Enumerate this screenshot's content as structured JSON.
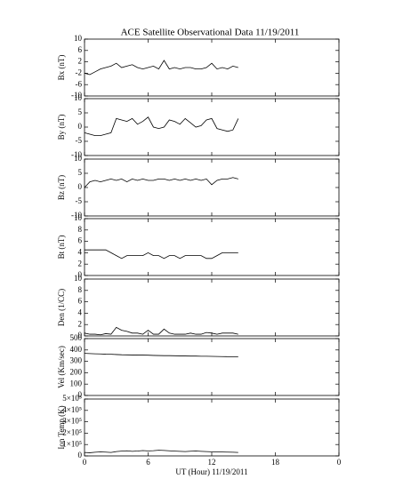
{
  "title": "ACE Satellite Observational Data   11/19/2011",
  "chart_data": [
    {
      "type": "line",
      "y_label": "Bx (nT)",
      "color": "#000000",
      "ylim": [
        -10,
        10
      ],
      "yticks": [
        -10,
        -6,
        -2,
        2,
        6,
        10
      ],
      "x": [
        0,
        0.5,
        1,
        1.5,
        2,
        2.5,
        3,
        3.5,
        4,
        4.5,
        5,
        5.5,
        6,
        6.5,
        7,
        7.5,
        8,
        8.5,
        9,
        9.5,
        10,
        10.5,
        11,
        11.5,
        12,
        12.5,
        13,
        13.5,
        14,
        14.5
      ],
      "values": [
        -2,
        -2.5,
        -1.5,
        -0.5,
        0,
        0.5,
        1.5,
        0,
        0.5,
        1,
        0,
        -0.5,
        0,
        0.5,
        -0.5,
        2.5,
        -0.5,
        0,
        -0.5,
        0,
        0,
        -0.5,
        -0.5,
        0,
        1.5,
        -0.5,
        0,
        -0.5,
        0.5,
        0
      ]
    },
    {
      "type": "line",
      "y_label": "By (nT)",
      "color": "#000000",
      "ylim": [
        -10,
        10
      ],
      "yticks": [
        -10,
        -5,
        0,
        5,
        10
      ],
      "x": [
        0,
        0.5,
        1,
        1.5,
        2,
        2.5,
        3,
        3.5,
        4,
        4.5,
        5,
        5.5,
        6,
        6.5,
        7,
        7.5,
        8,
        8.5,
        9,
        9.5,
        10,
        10.5,
        11,
        11.5,
        12,
        12.5,
        13,
        13.5,
        14,
        14.5
      ],
      "values": [
        -2,
        -2.5,
        -3,
        -3,
        -2.5,
        -2,
        3,
        2.5,
        2,
        3,
        1,
        2,
        3.5,
        0,
        -0.5,
        0,
        2.5,
        2,
        1,
        3,
        1.5,
        0,
        0.5,
        2.5,
        3,
        -0.5,
        -1,
        -1.5,
        -1,
        3
      ]
    },
    {
      "type": "line",
      "y_label": "Bz (nT)",
      "color": "#000000",
      "ylim": [
        -10,
        10
      ],
      "yticks": [
        -10,
        -5,
        0,
        5,
        10
      ],
      "x": [
        0,
        0.5,
        1,
        1.5,
        2,
        2.5,
        3,
        3.5,
        4,
        4.5,
        5,
        5.5,
        6,
        6.5,
        7,
        7.5,
        8,
        8.5,
        9,
        9.5,
        10,
        10.5,
        11,
        11.5,
        12,
        12.5,
        13,
        13.5,
        14,
        14.5
      ],
      "values": [
        0,
        2,
        2.5,
        2,
        2.5,
        3,
        2.5,
        3,
        2,
        3,
        2.5,
        3,
        2.5,
        2.5,
        3,
        3,
        2.5,
        3,
        2.5,
        3,
        2.5,
        3,
        2.5,
        3,
        1,
        2.5,
        3,
        3,
        3.5,
        3
      ]
    },
    {
      "type": "line",
      "y_label": "Bt (nT)",
      "color": "#000000",
      "ylim": [
        0,
        10
      ],
      "yticks": [
        0,
        2,
        4,
        6,
        8,
        10
      ],
      "x": [
        0,
        0.5,
        1,
        1.5,
        2,
        2.5,
        3,
        3.5,
        4,
        4.5,
        5,
        5.5,
        6,
        6.5,
        7,
        7.5,
        8,
        8.5,
        9,
        9.5,
        10,
        10.5,
        11,
        11.5,
        12,
        12.5,
        13,
        13.5,
        14,
        14.5
      ],
      "values": [
        4.5,
        4.5,
        4.5,
        4.5,
        4.5,
        4,
        3.5,
        3,
        3.5,
        3.5,
        3.5,
        3.5,
        4,
        3.5,
        3.5,
        3,
        3.5,
        3.5,
        3,
        3.5,
        3.5,
        3.5,
        3.5,
        3,
        3,
        3.5,
        4,
        4,
        4,
        4
      ]
    },
    {
      "type": "line",
      "y_label": "Den (1/CC)",
      "color": "#000000",
      "ylim": [
        0,
        10
      ],
      "yticks": [
        0,
        2,
        4,
        6,
        8,
        10
      ],
      "x": [
        0,
        0.5,
        1,
        1.5,
        2,
        2.5,
        3,
        3.5,
        4,
        4.5,
        5,
        5.5,
        6,
        6.5,
        7,
        7.5,
        8,
        8.5,
        9,
        9.5,
        10,
        10.5,
        11,
        11.5,
        12,
        12.5,
        13,
        13.5,
        14,
        14.5
      ],
      "values": [
        0.5,
        0.3,
        0.3,
        0.2,
        0.4,
        0.3,
        1.5,
        1,
        0.8,
        0.5,
        0.5,
        0.3,
        1,
        0.3,
        0.3,
        1.2,
        0.5,
        0.3,
        0.3,
        0.3,
        0.5,
        0.3,
        0.3,
        0.6,
        0.5,
        0.3,
        0.5,
        0.5,
        0.5,
        0.3
      ]
    },
    {
      "type": "line",
      "y_label": "Vel (Km/sec)",
      "color": "#000000",
      "ylim": [
        0,
        500
      ],
      "yticks": [
        0,
        100,
        200,
        300,
        400,
        500
      ],
      "x": [
        0,
        0.5,
        1,
        1.5,
        2,
        2.5,
        3,
        3.5,
        4,
        4.5,
        5,
        5.5,
        6,
        6.5,
        7,
        7.5,
        8,
        8.5,
        9,
        9.5,
        10,
        10.5,
        11,
        11.5,
        12,
        12.5,
        13,
        13.5,
        14,
        14.5
      ],
      "values": [
        370,
        368,
        366,
        365,
        363,
        362,
        360,
        358,
        357,
        356,
        355,
        355,
        354,
        352,
        351,
        350,
        350,
        349,
        348,
        347,
        346,
        346,
        345,
        345,
        344,
        343,
        342,
        341,
        340,
        340
      ]
    },
    {
      "type": "line",
      "y_label": "Ion Temp (K)",
      "x_label": "UT (Hour)  11/19/2011",
      "color": "#000000",
      "ylim": [
        0,
        500000
      ],
      "yticks": [
        0,
        {
          "value": 100000,
          "label": "1×10⁵"
        },
        {
          "value": 200000,
          "label": "2×10⁵"
        },
        {
          "value": 300000,
          "label": "3×10⁵"
        },
        {
          "value": 400000,
          "label": "4×10⁵"
        },
        {
          "value": 500000,
          "label": "5×10⁵"
        }
      ],
      "xlim": [
        0,
        24
      ],
      "xticks": [
        0,
        6,
        12,
        18,
        {
          "value": 24,
          "label": "0"
        }
      ],
      "x": [
        0,
        0.5,
        1,
        1.5,
        2,
        2.5,
        3,
        3.5,
        4,
        4.5,
        5,
        5.5,
        6,
        6.5,
        7,
        7.5,
        8,
        8.5,
        9,
        9.5,
        10,
        10.5,
        11,
        11.5,
        12,
        12.5,
        13,
        13.5,
        14,
        14.5
      ],
      "values": [
        30000,
        28000,
        32000,
        35000,
        33000,
        30000,
        38000,
        42000,
        45000,
        40000,
        43000,
        47000,
        44000,
        46000,
        50000,
        48000,
        45000,
        42000,
        40000,
        38000,
        41000,
        43000,
        40000,
        38000,
        36000,
        35000,
        34000,
        33000,
        32000,
        30000
      ]
    }
  ]
}
